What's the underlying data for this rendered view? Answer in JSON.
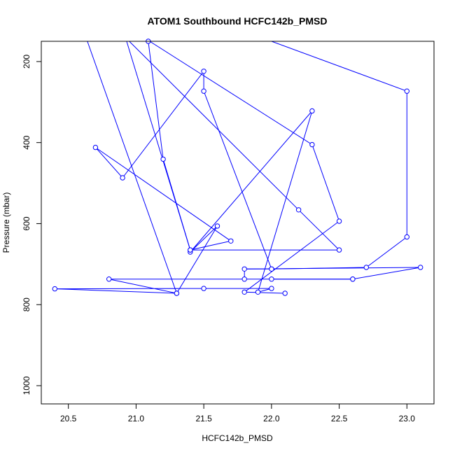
{
  "chart_data": {
    "type": "line",
    "title": "ATOM1 Southbound HCFC142b_PMSD",
    "xlabel": "HCFC142b_PMSD",
    "ylabel": "Pressure (mbar)",
    "xlim": [
      20.3,
      23.2
    ],
    "ylim": [
      1045,
      150
    ],
    "y_reversed": true,
    "x_ticks": [
      20.5,
      21.0,
      21.5,
      22.0,
      22.5,
      23.0
    ],
    "y_ticks": [
      200,
      400,
      600,
      800,
      1000
    ],
    "x_tick_labels": [
      "20.5",
      "21.0",
      "21.5",
      "22.0",
      "22.5",
      "23.0"
    ],
    "y_tick_labels": [
      "200",
      "400",
      "600",
      "800",
      "1000"
    ],
    "grid": false,
    "series": [
      {
        "color": "#0000ff",
        "marker": "open-circle",
        "line_start": {
          "x": 20.64,
          "y": 150
        },
        "points": [
          {
            "x": 21.3,
            "y": 772
          },
          {
            "x": 20.4,
            "y": 761
          },
          {
            "x": 21.5,
            "y": 760
          },
          {
            "x": 22.0,
            "y": 760
          },
          {
            "x": 21.9,
            "y": 769
          },
          {
            "x": 22.3,
            "y": 322
          },
          {
            "x": 21.4,
            "y": 670
          },
          {
            "x": 21.6,
            "y": 606
          },
          {
            "x": 21.3,
            "y": 772
          },
          {
            "x": 20.8,
            "y": 737
          },
          {
            "x": 22.6,
            "y": 737
          },
          {
            "x": 21.8,
            "y": 737
          },
          {
            "x": 21.8,
            "y": 712
          },
          {
            "x": 22.0,
            "y": 712
          },
          {
            "x": 21.5,
            "y": 273
          },
          {
            "x": 21.5,
            "y": 224
          },
          {
            "x": 20.9,
            "y": 487
          },
          {
            "x": 20.7,
            "y": 412
          },
          {
            "x": 21.7,
            "y": 643
          },
          {
            "x": 21.4,
            "y": 665
          },
          {
            "x": 21.2,
            "y": 441
          },
          {
            "x": 21.09,
            "y": 150
          }
        ],
        "line_resume": {
          "x": 20.95,
          "y": 150
        },
        "points_2": [
          {
            "x": 22.2,
            "y": 566
          },
          {
            "x": 22.5,
            "y": 665
          },
          {
            "x": 21.4,
            "y": 665
          }
        ],
        "line_to_edge_2": {
          "x": 20.93,
          "y": 150
        },
        "line_resume_2": {
          "x": 21.1,
          "y": 150
        },
        "points_3": [
          {
            "x": 22.3,
            "y": 405
          },
          {
            "x": 22.5,
            "y": 594
          },
          {
            "x": 21.8,
            "y": 769
          },
          {
            "x": 22.1,
            "y": 772
          }
        ],
        "line_resume_3": {
          "x": 22.0,
          "y": 150
        },
        "points_4": [
          {
            "x": 23.0,
            "y": 273
          },
          {
            "x": 23.0,
            "y": 633
          },
          {
            "x": 22.7,
            "y": 708
          },
          {
            "x": 22.0,
            "y": 712
          }
        ],
        "extra_points": [
          {
            "x": 23.1,
            "y": 708
          },
          {
            "x": 22.6,
            "y": 737
          },
          {
            "x": 22.0,
            "y": 737
          }
        ]
      }
    ]
  }
}
